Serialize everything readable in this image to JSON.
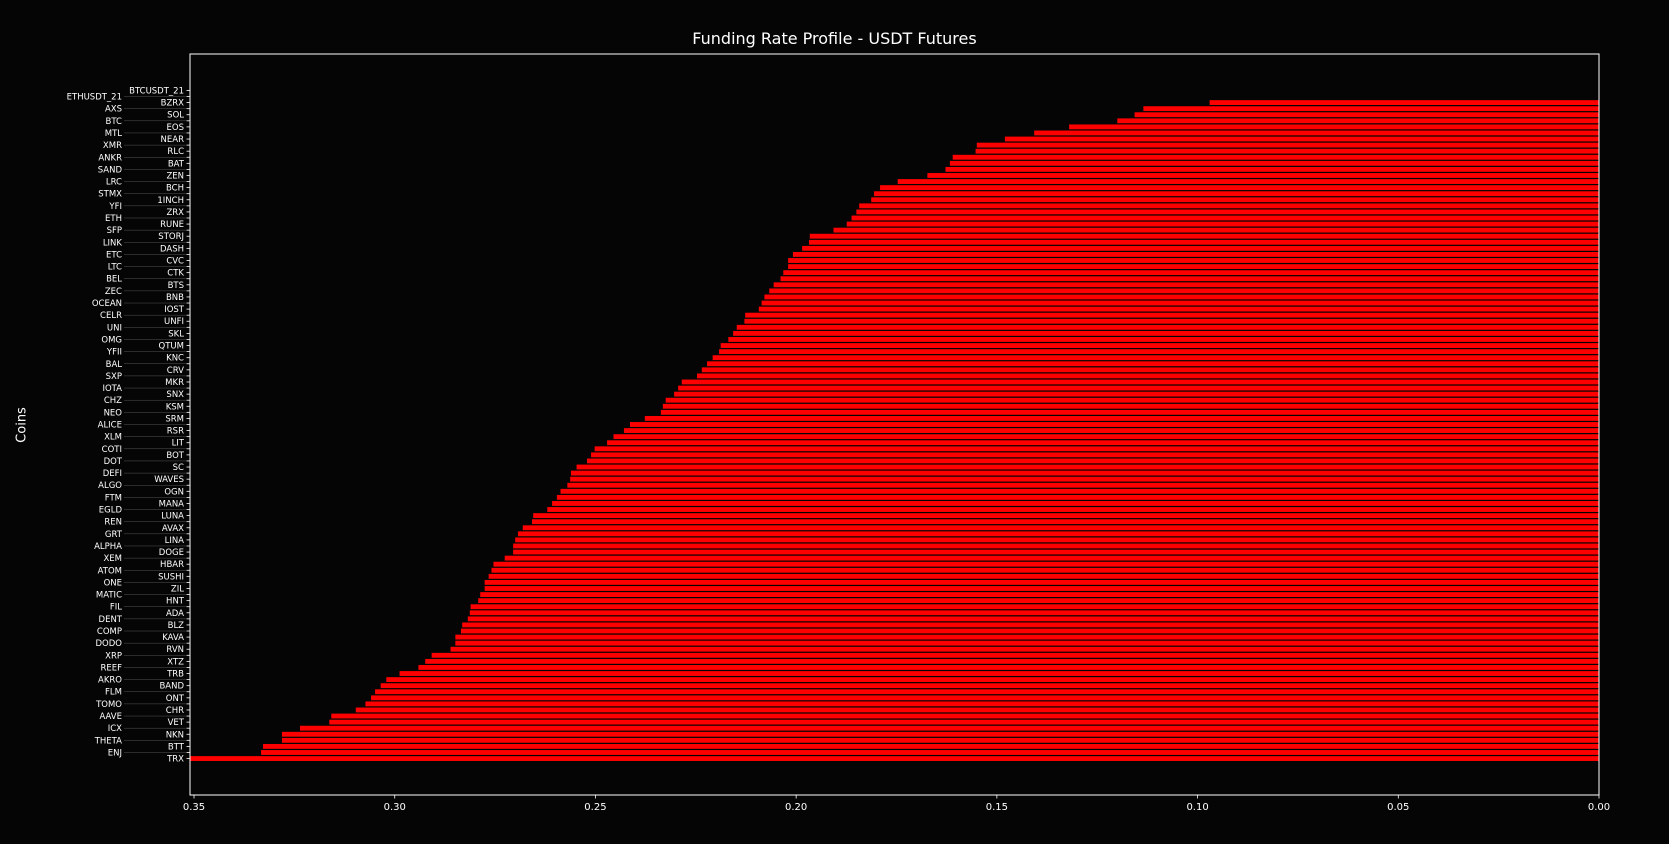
{
  "chart_data": {
    "type": "bar",
    "orientation": "horizontal",
    "title": "Funding Rate Profile - USDT Futures",
    "xlabel": "",
    "ylabel": "Coins",
    "xlim": [
      0.351,
      0.0
    ],
    "x_inverted": true,
    "xticks": [
      0.35,
      0.3,
      0.25,
      0.2,
      0.15,
      0.1,
      0.05,
      0.0
    ],
    "xtick_labels": [
      "0.35",
      "0.30",
      "0.25",
      "0.20",
      "0.15",
      "0.10",
      "0.05",
      "0.00"
    ],
    "grid": false,
    "background": "#050505",
    "bar_color": "#ff0000",
    "categories": [
      "BTCUSDT_21",
      "ETHUSDT_21",
      "BZRX",
      "AXS",
      "SOL",
      "BTC",
      "EOS",
      "MTL",
      "NEAR",
      "XMR",
      "RLC",
      "ANKR",
      "BAT",
      "SAND",
      "ZEN",
      "LRC",
      "BCH",
      "STMX",
      "1INCH",
      "YFI",
      "ZRX",
      "ETH",
      "RUNE",
      "SFP",
      "STORJ",
      "LINK",
      "DASH",
      "ETC",
      "CVC",
      "LTC",
      "CTK",
      "BEL",
      "BTS",
      "ZEC",
      "BNB",
      "OCEAN",
      "IOST",
      "CELR",
      "UNFI",
      "UNI",
      "SKL",
      "OMG",
      "QTUM",
      "YFII",
      "KNC",
      "BAL",
      "CRV",
      "SXP",
      "MKR",
      "IOTA",
      "SNX",
      "CHZ",
      "KSM",
      "NEO",
      "SRM",
      "ALICE",
      "RSR",
      "XLM",
      "LIT",
      "COTI",
      "BOT",
      "DOT",
      "SC",
      "DEFI",
      "WAVES",
      "ALGO",
      "OGN",
      "FTM",
      "MANA",
      "EGLD",
      "LUNA",
      "REN",
      "AVAX",
      "GRT",
      "LINA",
      "ALPHA",
      "DOGE",
      "XEM",
      "HBAR",
      "ATOM",
      "SUSHI",
      "ONE",
      "ZIL",
      "MATIC",
      "HNT",
      "FIL",
      "ADA",
      "DENT",
      "BLZ",
      "COMP",
      "KAVA",
      "DODO",
      "RVN",
      "XRP",
      "XTZ",
      "REEF",
      "TRB",
      "AKRO",
      "BAND",
      "FLM",
      "ONT",
      "TOMO",
      "CHR",
      "AAVE",
      "VET",
      "ICX",
      "NKN",
      "THETA",
      "BTT",
      "ENJ",
      "TRX"
    ],
    "values": [
      0.0,
      0.0,
      0.097,
      0.1135,
      0.1157,
      0.12,
      0.132,
      0.1407,
      0.148,
      0.155,
      0.1553,
      0.161,
      0.1617,
      0.1628,
      0.1673,
      0.1747,
      0.1791,
      0.1806,
      0.1813,
      0.1843,
      0.185,
      0.1862,
      0.1874,
      0.1907,
      0.1966,
      0.1968,
      0.1985,
      0.2008,
      0.202,
      0.202,
      0.2032,
      0.2039,
      0.2056,
      0.2067,
      0.2079,
      0.2086,
      0.2093,
      0.2127,
      0.2129,
      0.2148,
      0.2157,
      0.2169,
      0.2188,
      0.2192,
      0.2208,
      0.2222,
      0.2235,
      0.2247,
      0.2285,
      0.2294,
      0.2304,
      0.2325,
      0.2332,
      0.2337,
      0.2377,
      0.2414,
      0.2429,
      0.2455,
      0.2471,
      0.2502,
      0.2511,
      0.2521,
      0.2547,
      0.2561,
      0.2563,
      0.257,
      0.2587,
      0.2596,
      0.2608,
      0.262,
      0.2655,
      0.2658,
      0.2681,
      0.2693,
      0.27,
      0.2705,
      0.2705,
      0.2726,
      0.2754,
      0.2759,
      0.2766,
      0.2776,
      0.2776,
      0.2787,
      0.2792,
      0.2811,
      0.2813,
      0.2818,
      0.2832,
      0.2835,
      0.2849,
      0.2849,
      0.2861,
      0.2908,
      0.2924,
      0.2941,
      0.2988,
      0.3021,
      0.3035,
      0.3049,
      0.3059,
      0.3073,
      0.3097,
      0.3158,
      0.3163,
      0.3236,
      0.3281,
      0.3281,
      0.3328,
      0.3333,
      0.351
    ]
  }
}
